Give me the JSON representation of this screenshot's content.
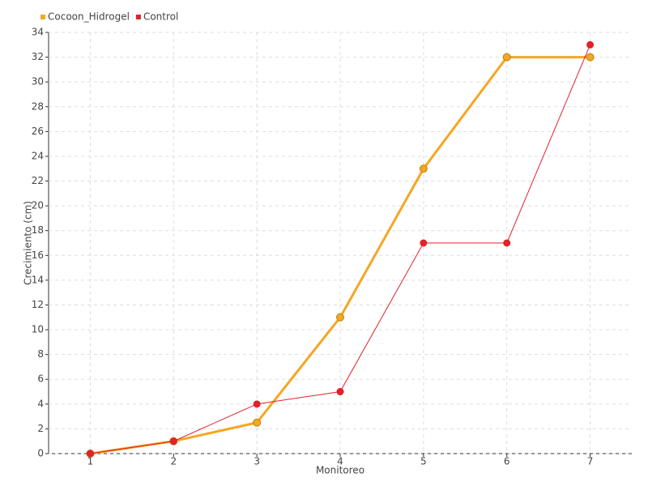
{
  "chart_data": {
    "type": "line",
    "x_label": "Monitoreo",
    "y_label": "Crecimiento (cm)",
    "x": [
      1,
      2,
      3,
      4,
      5,
      6,
      7
    ],
    "xlim": [
      0.5,
      7.5
    ],
    "xticks": [
      1,
      2,
      3,
      4,
      5,
      6,
      7
    ],
    "ylim": [
      0,
      34
    ],
    "yticks": [
      0,
      2,
      4,
      6,
      8,
      10,
      12,
      14,
      16,
      18,
      20,
      22,
      24,
      26,
      28,
      30,
      32,
      34
    ],
    "grid": true,
    "legend": "top-left",
    "series": [
      {
        "name": "Cocoon_Hidrogel",
        "color": "#f5a623",
        "values": [
          0,
          1,
          2.5,
          11,
          23,
          32,
          32
        ]
      },
      {
        "name": "Control",
        "color": "#e3212b",
        "values": [
          0,
          1,
          4,
          5,
          17,
          17,
          33
        ]
      }
    ]
  }
}
